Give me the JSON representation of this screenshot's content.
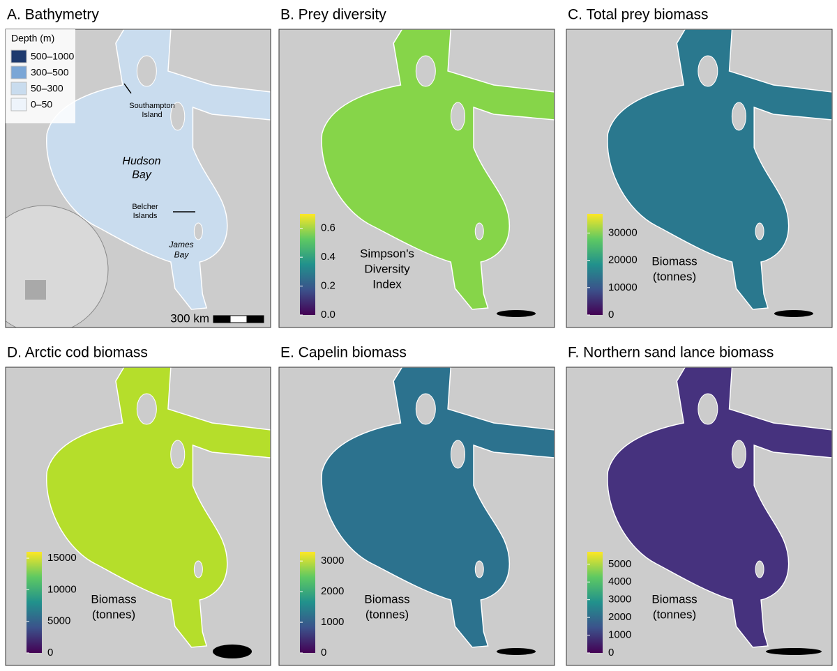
{
  "panels": [
    {
      "title": "A. Bathymetry",
      "fill": "#c9dcee",
      "legend_title": "Depth (m)",
      "legend": [
        {
          "label": "500–1000",
          "color": "#1e3a6e"
        },
        {
          "label": "300–500",
          "color": "#7aa6d6"
        },
        {
          "label": "50–300",
          "color": "#c9dcee"
        },
        {
          "label": "0–50",
          "color": "#eef4fb"
        }
      ],
      "places": [
        {
          "lines": [
            "Southampton",
            "Island"
          ]
        },
        {
          "lines": [
            "Hudson",
            "Bay"
          ]
        },
        {
          "lines": [
            "Belcher",
            "Islands"
          ]
        },
        {
          "lines": [
            "James",
            "Bay"
          ]
        }
      ],
      "scale_label": "300 km"
    },
    {
      "title": "B. Prey diversity",
      "fill": "#86d549",
      "colorbar_label": [
        "Simpson's",
        "Diversity",
        "Index"
      ],
      "lim": [
        0,
        0.7
      ],
      "ticks": [
        {
          "value": 0,
          "label": "0.0"
        },
        0.2,
        0.4,
        0.6
      ]
    },
    {
      "title": "C. Total prey biomass",
      "fill": "#2a788e",
      "colorbar_label": [
        "Biomass",
        "(tonnes)"
      ],
      "lim": [
        0,
        37000
      ],
      "ticks": [
        0,
        10000,
        20000,
        30000
      ]
    },
    {
      "title": "D. Arctic cod biomass",
      "fill": "#b5de2b",
      "colorbar_label": [
        "Biomass",
        "(tonnes)"
      ],
      "lim": [
        0,
        16000
      ],
      "ticks": [
        0,
        5000,
        10000,
        15000
      ]
    },
    {
      "title": "E. Capelin biomass",
      "fill": "#2c728e",
      "colorbar_label": [
        "Biomass",
        "(tonnes)"
      ],
      "lim": [
        0,
        3300
      ],
      "ticks": [
        0,
        1000,
        2000,
        3000
      ]
    },
    {
      "title": "F. Northern sand lance biomass",
      "fill": "#46327e",
      "colorbar_label": [
        "Biomass",
        "(tonnes)"
      ],
      "lim": [
        0,
        5700
      ],
      "ticks": [
        0,
        1000,
        2000,
        3000,
        4000,
        5000
      ]
    }
  ]
}
